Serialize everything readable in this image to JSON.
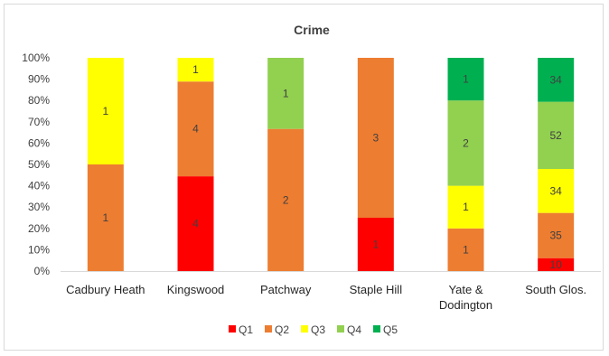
{
  "chart_data": {
    "type": "bar",
    "stacked": "percent",
    "title": "Crime",
    "xlabel": "",
    "ylabel": "",
    "ylim": [
      0,
      1
    ],
    "yticks": [
      "0%",
      "10%",
      "20%",
      "30%",
      "40%",
      "50%",
      "60%",
      "70%",
      "80%",
      "90%",
      "100%"
    ],
    "categories": [
      "Cadbury Heath",
      "Kingswood",
      "Patchway",
      "Staple Hill",
      "Yate & Dodington",
      "South Glos."
    ],
    "series": [
      {
        "name": "Q1",
        "color": "#ff0000",
        "values": [
          0,
          4,
          0,
          1,
          0,
          10
        ]
      },
      {
        "name": "Q2",
        "color": "#ed7d31",
        "values": [
          1,
          4,
          2,
          3,
          1,
          35
        ]
      },
      {
        "name": "Q3",
        "color": "#ffff00",
        "values": [
          1,
          1,
          0,
          0,
          1,
          34
        ]
      },
      {
        "name": "Q4",
        "color": "#92d050",
        "values": [
          0,
          0,
          1,
          0,
          2,
          52
        ]
      },
      {
        "name": "Q5",
        "color": "#00b050",
        "values": [
          0,
          0,
          0,
          0,
          1,
          34
        ]
      }
    ],
    "legend": "bottom",
    "grid": false
  }
}
